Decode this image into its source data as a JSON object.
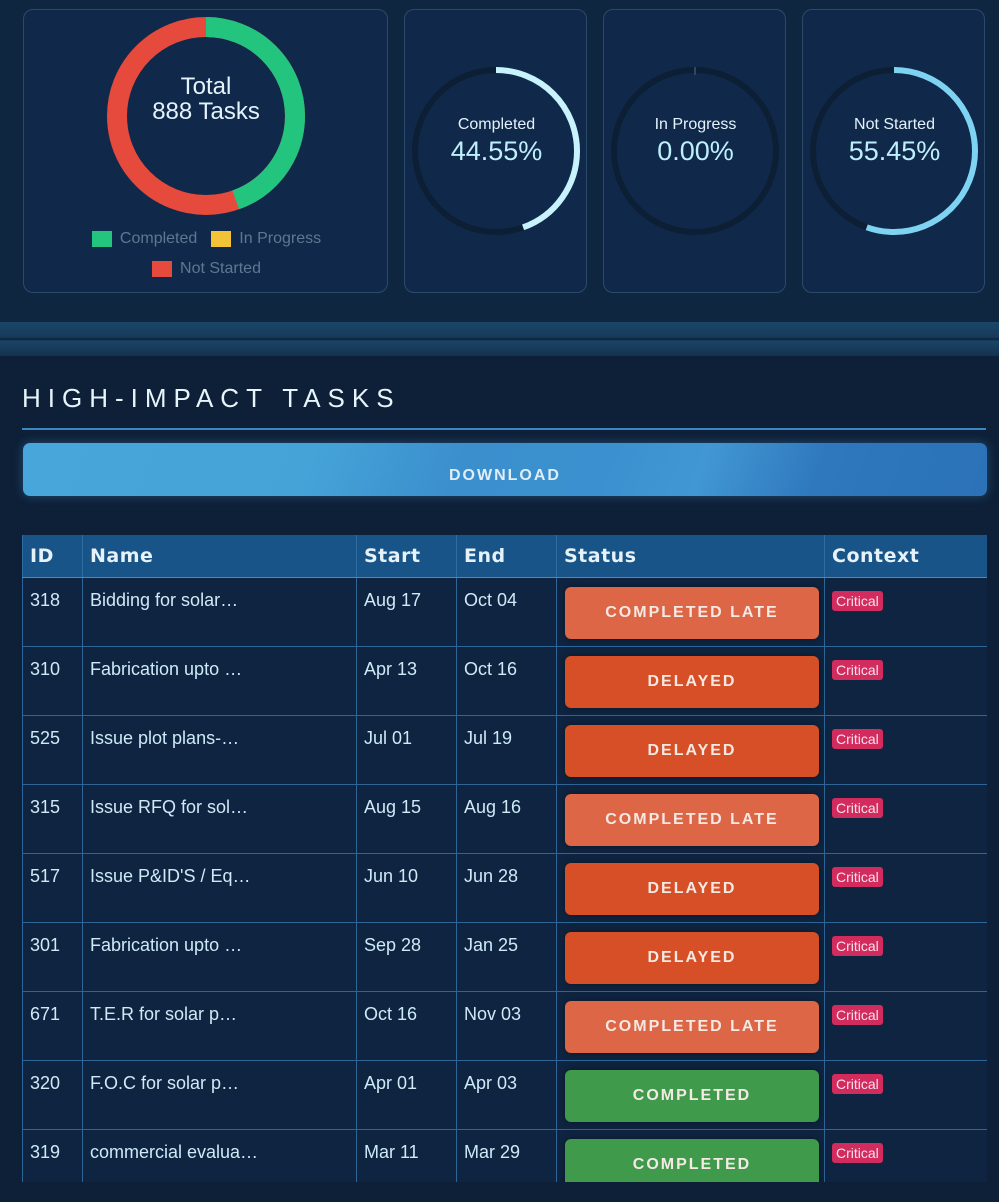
{
  "summary": {
    "total_line1": "Total",
    "total_line2": "888 Tasks",
    "legend": [
      {
        "label": "Completed",
        "color": "#22c47e"
      },
      {
        "label": "In Progress",
        "color": "#f3c236"
      },
      {
        "label": "Not Started",
        "color": "#e64a3c"
      }
    ],
    "donut_fractions": {
      "completed": 0.4455,
      "in_progress": 0.0,
      "not_started": 0.5545
    }
  },
  "gauges": [
    {
      "label": "Completed",
      "value": "44.55%",
      "fraction": 0.4455,
      "color": "#c8f3fd"
    },
    {
      "label": "In Progress",
      "value": "0.00%",
      "fraction": 0.0,
      "color": "#c8f3fd"
    },
    {
      "label": "Not Started",
      "value": "55.45%",
      "fraction": 0.5545,
      "color": "#7fd3f2"
    }
  ],
  "section": {
    "title": "HIGH-IMPACT TASKS",
    "download_label": "DOWNLOAD"
  },
  "table": {
    "headers": [
      "ID",
      "Name",
      "Start",
      "End",
      "Status",
      "Context"
    ],
    "rows": [
      {
        "id": "318",
        "name": "Bidding for solar…",
        "start": "Aug 17",
        "end": "Oct 04",
        "status": "COMPLETED LATE",
        "context": "Critical"
      },
      {
        "id": "310",
        "name": "Fabrication upto …",
        "start": "Apr 13",
        "end": "Oct 16",
        "status": "DELAYED",
        "context": "Critical"
      },
      {
        "id": "525",
        "name": "Issue plot plans-…",
        "start": "Jul 01",
        "end": "Jul 19",
        "status": "DELAYED",
        "context": "Critical"
      },
      {
        "id": "315",
        "name": "Issue RFQ for sol…",
        "start": "Aug 15",
        "end": "Aug 16",
        "status": "COMPLETED LATE",
        "context": "Critical"
      },
      {
        "id": "517",
        "name": "Issue P&ID'S / Eq…",
        "start": "Jun 10",
        "end": "Jun 28",
        "status": "DELAYED",
        "context": "Critical"
      },
      {
        "id": "301",
        "name": "Fabrication upto …",
        "start": "Sep 28",
        "end": "Jan 25",
        "status": "DELAYED",
        "context": "Critical"
      },
      {
        "id": "671",
        "name": "T.E.R for solar p…",
        "start": "Oct 16",
        "end": "Nov 03",
        "status": "COMPLETED LATE",
        "context": "Critical"
      },
      {
        "id": "320",
        "name": "F.O.C for solar p…",
        "start": "Apr 01",
        "end": "Apr 03",
        "status": "COMPLETED",
        "context": "Critical"
      },
      {
        "id": "319",
        "name": "commercial evalua…",
        "start": "Mar 11",
        "end": "Mar 29",
        "status": "COMPLETED",
        "context": "Critical"
      }
    ],
    "status_colors": {
      "COMPLETED LATE": "#dc6645",
      "DELAYED": "#d74f26",
      "COMPLETED": "#3f9a4c"
    }
  }
}
